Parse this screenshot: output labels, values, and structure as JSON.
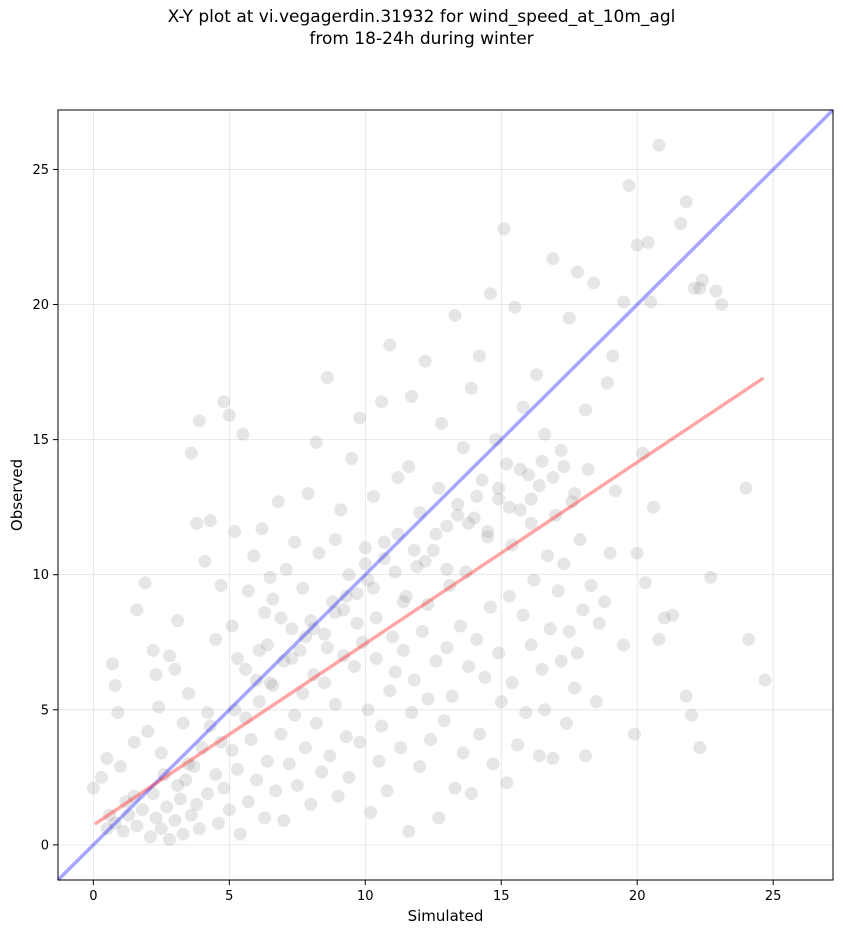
{
  "chart_data": {
    "type": "scatter",
    "title": "X-Y plot at vi.vegagerdin.31932 for wind_speed_at_10m_agl\nfrom 18-24h during winter",
    "xlabel": "Simulated",
    "ylabel": "Observed",
    "xlim": [
      -1.3,
      27.2
    ],
    "ylim": [
      -1.3,
      27.2
    ],
    "xticks": [
      0,
      5,
      10,
      15,
      20,
      25
    ],
    "yticks": [
      0,
      5,
      10,
      15,
      20,
      25
    ],
    "grid": true,
    "colors": {
      "points": "#808080",
      "identity": "#0000ff",
      "fit": "#ff0000"
    },
    "identity_line": {
      "x": [
        -1.3,
        27.2
      ],
      "y": [
        -1.3,
        27.2
      ]
    },
    "fit_line": {
      "x": [
        0.1,
        24.6
      ],
      "y": [
        0.8,
        17.25
      ]
    },
    "points": [
      [
        0.0,
        2.1
      ],
      [
        0.3,
        2.5
      ],
      [
        0.5,
        3.2
      ],
      [
        0.7,
        6.7
      ],
      [
        0.8,
        5.9
      ],
      [
        0.9,
        4.9
      ],
      [
        1.0,
        2.9
      ],
      [
        1.2,
        1.6
      ],
      [
        0.5,
        0.6
      ],
      [
        0.6,
        1.1
      ],
      [
        0.8,
        0.8
      ],
      [
        1.1,
        0.5
      ],
      [
        1.3,
        1.1
      ],
      [
        1.5,
        1.8
      ],
      [
        1.6,
        0.7
      ],
      [
        1.8,
        1.3
      ],
      [
        1.5,
        3.8
      ],
      [
        1.6,
        8.7
      ],
      [
        1.9,
        9.7
      ],
      [
        2.0,
        4.2
      ],
      [
        2.2,
        7.2
      ],
      [
        2.3,
        6.3
      ],
      [
        2.4,
        5.1
      ],
      [
        2.5,
        3.4
      ],
      [
        2.1,
        0.3
      ],
      [
        2.3,
        1.0
      ],
      [
        2.5,
        0.6
      ],
      [
        2.7,
        1.4
      ],
      [
        2.8,
        0.2
      ],
      [
        3.0,
        0.9
      ],
      [
        3.2,
        1.7
      ],
      [
        3.3,
        0.4
      ],
      [
        2.8,
        7.0
      ],
      [
        3.0,
        6.5
      ],
      [
        3.1,
        8.3
      ],
      [
        3.3,
        4.5
      ],
      [
        3.5,
        5.6
      ],
      [
        3.6,
        14.5
      ],
      [
        3.8,
        11.9
      ],
      [
        3.9,
        15.7
      ],
      [
        3.4,
        2.4
      ],
      [
        3.6,
        1.1
      ],
      [
        3.7,
        2.9
      ],
      [
        3.9,
        0.6
      ],
      [
        4.0,
        3.6
      ],
      [
        4.2,
        1.9
      ],
      [
        4.3,
        4.4
      ],
      [
        4.5,
        2.6
      ],
      [
        4.1,
        10.5
      ],
      [
        4.3,
        12.0
      ],
      [
        4.5,
        7.6
      ],
      [
        4.7,
        9.6
      ],
      [
        4.8,
        16.4
      ],
      [
        5.0,
        15.9
      ],
      [
        5.1,
        8.1
      ],
      [
        5.2,
        11.6
      ],
      [
        4.6,
        0.8
      ],
      [
        4.8,
        2.1
      ],
      [
        5.0,
        1.3
      ],
      [
        5.1,
        3.5
      ],
      [
        5.3,
        2.8
      ],
      [
        5.4,
        0.4
      ],
      [
        5.6,
        4.7
      ],
      [
        5.7,
        1.6
      ],
      [
        5.3,
        6.9
      ],
      [
        5.5,
        15.2
      ],
      [
        5.7,
        9.4
      ],
      [
        5.9,
        10.7
      ],
      [
        6.0,
        6.1
      ],
      [
        6.2,
        11.7
      ],
      [
        6.3,
        8.6
      ],
      [
        6.5,
        9.9
      ],
      [
        5.8,
        3.9
      ],
      [
        6.0,
        2.4
      ],
      [
        6.1,
        5.3
      ],
      [
        6.3,
        1.0
      ],
      [
        6.4,
        3.1
      ],
      [
        6.6,
        5.9
      ],
      [
        6.7,
        2.0
      ],
      [
        6.9,
        4.1
      ],
      [
        6.4,
        7.4
      ],
      [
        6.6,
        9.1
      ],
      [
        6.8,
        12.7
      ],
      [
        7.0,
        6.8
      ],
      [
        7.1,
        10.2
      ],
      [
        7.3,
        8.0
      ],
      [
        7.4,
        11.2
      ],
      [
        7.6,
        7.2
      ],
      [
        7.0,
        0.9
      ],
      [
        7.2,
        3.0
      ],
      [
        7.4,
        4.8
      ],
      [
        7.5,
        2.2
      ],
      [
        7.7,
        5.6
      ],
      [
        7.8,
        3.6
      ],
      [
        8.0,
        1.5
      ],
      [
        8.1,
        6.3
      ],
      [
        7.7,
        9.5
      ],
      [
        7.9,
        13.0
      ],
      [
        8.0,
        8.3
      ],
      [
        8.2,
        14.9
      ],
      [
        8.3,
        10.8
      ],
      [
        8.5,
        7.8
      ],
      [
        8.6,
        17.3
      ],
      [
        8.8,
        9.0
      ],
      [
        8.2,
        4.5
      ],
      [
        8.4,
        2.7
      ],
      [
        8.5,
        6.0
      ],
      [
        8.7,
        3.3
      ],
      [
        8.9,
        5.2
      ],
      [
        9.0,
        1.8
      ],
      [
        9.2,
        7.0
      ],
      [
        9.3,
        4.0
      ],
      [
        8.9,
        11.3
      ],
      [
        9.1,
        12.4
      ],
      [
        9.2,
        8.7
      ],
      [
        9.4,
        10.0
      ],
      [
        9.5,
        14.3
      ],
      [
        9.7,
        9.3
      ],
      [
        9.8,
        15.8
      ],
      [
        10.0,
        11.0
      ],
      [
        9.4,
        2.5
      ],
      [
        9.6,
        6.6
      ],
      [
        9.8,
        3.8
      ],
      [
        9.9,
        7.5
      ],
      [
        10.1,
        5.0
      ],
      [
        10.2,
        1.2
      ],
      [
        10.4,
        6.9
      ],
      [
        10.5,
        3.1
      ],
      [
        10.1,
        9.8
      ],
      [
        10.3,
        12.9
      ],
      [
        10.4,
        8.4
      ],
      [
        10.6,
        16.4
      ],
      [
        10.7,
        10.6
      ],
      [
        10.9,
        18.5
      ],
      [
        11.0,
        7.7
      ],
      [
        11.2,
        13.6
      ],
      [
        10.6,
        4.4
      ],
      [
        10.8,
        2.0
      ],
      [
        10.9,
        5.7
      ],
      [
        11.1,
        6.4
      ],
      [
        11.3,
        3.6
      ],
      [
        11.4,
        7.2
      ],
      [
        11.6,
        0.5
      ],
      [
        11.7,
        4.9
      ],
      [
        11.2,
        11.5
      ],
      [
        11.4,
        9.0
      ],
      [
        11.6,
        14.0
      ],
      [
        11.7,
        16.6
      ],
      [
        11.9,
        10.3
      ],
      [
        12.0,
        12.3
      ],
      [
        12.2,
        17.9
      ],
      [
        12.3,
        8.9
      ],
      [
        11.8,
        6.1
      ],
      [
        12.0,
        2.9
      ],
      [
        12.1,
        7.9
      ],
      [
        12.3,
        5.4
      ],
      [
        12.4,
        3.9
      ],
      [
        12.6,
        6.8
      ],
      [
        12.7,
        1.0
      ],
      [
        12.9,
        4.6
      ],
      [
        12.5,
        10.9
      ],
      [
        12.7,
        13.2
      ],
      [
        12.8,
        15.6
      ],
      [
        13.0,
        11.8
      ],
      [
        13.1,
        9.6
      ],
      [
        13.3,
        19.6
      ],
      [
        13.4,
        12.6
      ],
      [
        13.6,
        14.7
      ],
      [
        13.0,
        7.3
      ],
      [
        13.2,
        5.5
      ],
      [
        13.3,
        2.1
      ],
      [
        13.5,
        8.1
      ],
      [
        13.6,
        3.4
      ],
      [
        13.8,
        6.6
      ],
      [
        13.9,
        1.9
      ],
      [
        14.1,
        7.6
      ],
      [
        13.7,
        10.1
      ],
      [
        13.9,
        16.9
      ],
      [
        14.0,
        12.1
      ],
      [
        14.2,
        18.1
      ],
      [
        14.3,
        13.5
      ],
      [
        14.5,
        11.4
      ],
      [
        14.6,
        20.4
      ],
      [
        14.8,
        15.0
      ],
      [
        14.2,
        4.1
      ],
      [
        14.4,
        6.2
      ],
      [
        14.6,
        8.8
      ],
      [
        14.7,
        3.0
      ],
      [
        14.9,
        7.1
      ],
      [
        15.0,
        5.3
      ],
      [
        15.2,
        2.3
      ],
      [
        15.3,
        9.2
      ],
      [
        14.9,
        12.8
      ],
      [
        15.1,
        22.8
      ],
      [
        15.2,
        14.1
      ],
      [
        15.4,
        11.1
      ],
      [
        15.5,
        19.9
      ],
      [
        15.7,
        12.4
      ],
      [
        15.8,
        16.2
      ],
      [
        16.0,
        13.7
      ],
      [
        15.4,
        6.0
      ],
      [
        15.6,
        3.7
      ],
      [
        15.8,
        8.5
      ],
      [
        15.9,
        4.9
      ],
      [
        16.1,
        7.4
      ],
      [
        16.2,
        9.8
      ],
      [
        16.4,
        3.3
      ],
      [
        16.5,
        6.5
      ],
      [
        16.1,
        11.9
      ],
      [
        16.3,
        17.4
      ],
      [
        16.4,
        13.3
      ],
      [
        16.6,
        15.2
      ],
      [
        16.7,
        10.7
      ],
      [
        16.9,
        21.7
      ],
      [
        17.0,
        12.2
      ],
      [
        17.2,
        14.6
      ],
      [
        16.6,
        5.0
      ],
      [
        16.8,
        8.0
      ],
      [
        16.9,
        3.2
      ],
      [
        17.1,
        9.4
      ],
      [
        17.2,
        6.8
      ],
      [
        17.4,
        4.5
      ],
      [
        17.5,
        7.9
      ],
      [
        17.7,
        5.8
      ],
      [
        17.3,
        10.4
      ],
      [
        17.5,
        19.5
      ],
      [
        17.6,
        12.7
      ],
      [
        17.8,
        21.2
      ],
      [
        17.9,
        11.3
      ],
      [
        18.1,
        16.1
      ],
      [
        18.2,
        13.9
      ],
      [
        18.4,
        20.8
      ],
      [
        17.8,
        7.1
      ],
      [
        18.0,
        8.7
      ],
      [
        18.1,
        3.3
      ],
      [
        18.3,
        9.6
      ],
      [
        18.5,
        5.3
      ],
      [
        18.6,
        8.2
      ],
      [
        18.8,
        9.0
      ],
      [
        19.0,
        10.8
      ],
      [
        18.9,
        17.1
      ],
      [
        19.1,
        18.1
      ],
      [
        19.2,
        13.1
      ],
      [
        19.5,
        20.1
      ],
      [
        19.7,
        24.4
      ],
      [
        20.0,
        22.2
      ],
      [
        20.2,
        14.5
      ],
      [
        20.5,
        20.1
      ],
      [
        19.5,
        7.4
      ],
      [
        19.9,
        4.1
      ],
      [
        20.0,
        10.8
      ],
      [
        20.3,
        9.7
      ],
      [
        20.6,
        12.5
      ],
      [
        20.8,
        7.6
      ],
      [
        21.0,
        8.4
      ],
      [
        21.3,
        8.5
      ],
      [
        20.4,
        22.3
      ],
      [
        20.8,
        25.9
      ],
      [
        21.6,
        23.0
      ],
      [
        21.8,
        23.8
      ],
      [
        22.1,
        20.6
      ],
      [
        22.4,
        20.9
      ],
      [
        22.9,
        20.5
      ],
      [
        23.1,
        20.0
      ],
      [
        21.8,
        5.5
      ],
      [
        22.0,
        4.8
      ],
      [
        22.3,
        3.6
      ],
      [
        22.7,
        9.9
      ],
      [
        24.0,
        13.2
      ],
      [
        24.1,
        7.6
      ],
      [
        24.7,
        6.1
      ],
      [
        22.3,
        20.6
      ],
      [
        2.2,
        1.9
      ],
      [
        2.6,
        2.6
      ],
      [
        3.1,
        2.2
      ],
      [
        3.5,
        3.0
      ],
      [
        3.8,
        1.5
      ],
      [
        4.2,
        4.9
      ],
      [
        4.7,
        3.8
      ],
      [
        5.2,
        5.0
      ],
      [
        5.6,
        6.5
      ],
      [
        6.1,
        7.2
      ],
      [
        6.5,
        6.0
      ],
      [
        6.9,
        8.4
      ],
      [
        7.3,
        6.9
      ],
      [
        7.8,
        7.7
      ],
      [
        8.1,
        8.0
      ],
      [
        8.6,
        7.3
      ],
      [
        8.9,
        8.6
      ],
      [
        9.3,
        9.2
      ],
      [
        9.7,
        8.2
      ],
      [
        10.0,
        10.4
      ],
      [
        10.3,
        9.5
      ],
      [
        10.7,
        11.2
      ],
      [
        11.1,
        10.1
      ],
      [
        11.5,
        9.2
      ],
      [
        11.8,
        10.9
      ],
      [
        12.2,
        10.5
      ],
      [
        12.6,
        11.5
      ],
      [
        13.0,
        10.2
      ],
      [
        13.4,
        12.2
      ],
      [
        13.8,
        11.9
      ],
      [
        14.1,
        12.9
      ],
      [
        14.5,
        11.6
      ],
      [
        14.9,
        13.2
      ],
      [
        15.3,
        12.5
      ],
      [
        15.7,
        13.9
      ],
      [
        16.1,
        12.8
      ],
      [
        16.5,
        14.2
      ],
      [
        16.9,
        13.6
      ],
      [
        17.3,
        14.0
      ],
      [
        17.7,
        13.0
      ]
    ]
  }
}
